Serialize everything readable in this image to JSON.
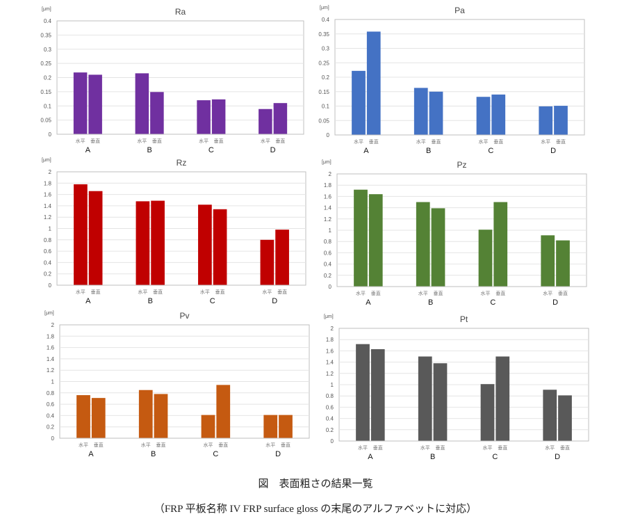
{
  "chart_data": [
    {
      "type": "bar",
      "title": "Ra",
      "unit": "[μm]",
      "ylim": [
        0,
        0.4
      ],
      "yticks": [
        "0",
        "0.05",
        "0.1",
        "0.15",
        "0.2",
        "0.25",
        "0.3",
        "0.35",
        "0.4"
      ],
      "categories": [
        "A",
        "B",
        "C",
        "D"
      ],
      "sub_labels": [
        "水平",
        "垂直"
      ],
      "color": "#7030a0",
      "grid": true,
      "series": [
        {
          "name": "水平",
          "values": [
            0.218,
            0.215,
            0.12,
            0.089
          ]
        },
        {
          "name": "垂直",
          "values": [
            0.21,
            0.149,
            0.123,
            0.11
          ]
        }
      ]
    },
    {
      "type": "bar",
      "title": "Pa",
      "unit": "[μm]",
      "ylim": [
        0,
        0.4
      ],
      "yticks": [
        "0",
        "0.05",
        "0.1",
        "0.15",
        "0.2",
        "0.25",
        "0.3",
        "0.35",
        "0.4"
      ],
      "categories": [
        "A",
        "B",
        "C",
        "D"
      ],
      "sub_labels": [
        "水平",
        "垂直"
      ],
      "color": "#4472c4",
      "grid": true,
      "series": [
        {
          "name": "水平",
          "values": [
            0.222,
            0.163,
            0.132,
            0.099
          ]
        },
        {
          "name": "垂直",
          "values": [
            0.358,
            0.15,
            0.14,
            0.101
          ]
        }
      ]
    },
    {
      "type": "bar",
      "title": "Rz",
      "unit": "[μm]",
      "ylim": [
        0,
        2
      ],
      "yticks": [
        "0",
        "0.2",
        "0.4",
        "0.6",
        "0.8",
        "1",
        "1.2",
        "1.4",
        "1.6",
        "1.8",
        "2"
      ],
      "categories": [
        "A",
        "B",
        "C",
        "D"
      ],
      "sub_labels": [
        "水平",
        "垂直"
      ],
      "color": "#c00000",
      "grid": true,
      "series": [
        {
          "name": "水平",
          "values": [
            1.78,
            1.48,
            1.42,
            0.8
          ]
        },
        {
          "name": "垂直",
          "values": [
            1.66,
            1.49,
            1.34,
            0.98
          ]
        }
      ]
    },
    {
      "type": "bar",
      "title": "Pz",
      "unit": "[μm]",
      "ylim": [
        0,
        2
      ],
      "yticks": [
        "0",
        "0.2",
        "0.4",
        "0.6",
        "0.8",
        "1",
        "1.2",
        "1.4",
        "1.6",
        "1.8",
        "2"
      ],
      "categories": [
        "A",
        "B",
        "C",
        "D"
      ],
      "sub_labels": [
        "水平",
        "垂直"
      ],
      "color": "#548235",
      "grid": true,
      "series": [
        {
          "name": "水平",
          "values": [
            1.72,
            1.5,
            1.01,
            0.91
          ]
        },
        {
          "name": "垂直",
          "values": [
            1.64,
            1.39,
            1.5,
            0.82
          ]
        }
      ]
    },
    {
      "type": "bar",
      "title": "Pv",
      "unit": "[μm]",
      "ylim": [
        0,
        2
      ],
      "yticks": [
        "0",
        "0.2",
        "0.4",
        "0.6",
        "0.8",
        "1",
        "1.2",
        "1.4",
        "1.6",
        "1.8",
        "2"
      ],
      "categories": [
        "A",
        "B",
        "C",
        "D"
      ],
      "sub_labels": [
        "水平",
        "垂直"
      ],
      "color": "#c55a11",
      "grid": true,
      "series": [
        {
          "name": "水平",
          "values": [
            0.76,
            0.85,
            0.41,
            0.41
          ]
        },
        {
          "name": "垂直",
          "values": [
            0.71,
            0.78,
            0.94,
            0.41
          ]
        }
      ]
    },
    {
      "type": "bar",
      "title": "Pt",
      "unit": "[μm]",
      "ylim": [
        0,
        2
      ],
      "yticks": [
        "0",
        "0.2",
        "0.4",
        "0.6",
        "0.8",
        "1",
        "1.2",
        "1.4",
        "1.6",
        "1.8",
        "2"
      ],
      "categories": [
        "A",
        "B",
        "C",
        "D"
      ],
      "sub_labels": [
        "水平",
        "垂直"
      ],
      "color": "#595959",
      "grid": true,
      "series": [
        {
          "name": "水平",
          "values": [
            1.72,
            1.5,
            1.01,
            0.91
          ]
        },
        {
          "name": "垂直",
          "values": [
            1.63,
            1.38,
            1.5,
            0.81
          ]
        }
      ]
    }
  ],
  "caption": {
    "title": "図　表面粗さの結果一覧",
    "note": "（FRP 平板名称 IV FRP surface gloss  の末尾のアルファベットに対応）"
  }
}
